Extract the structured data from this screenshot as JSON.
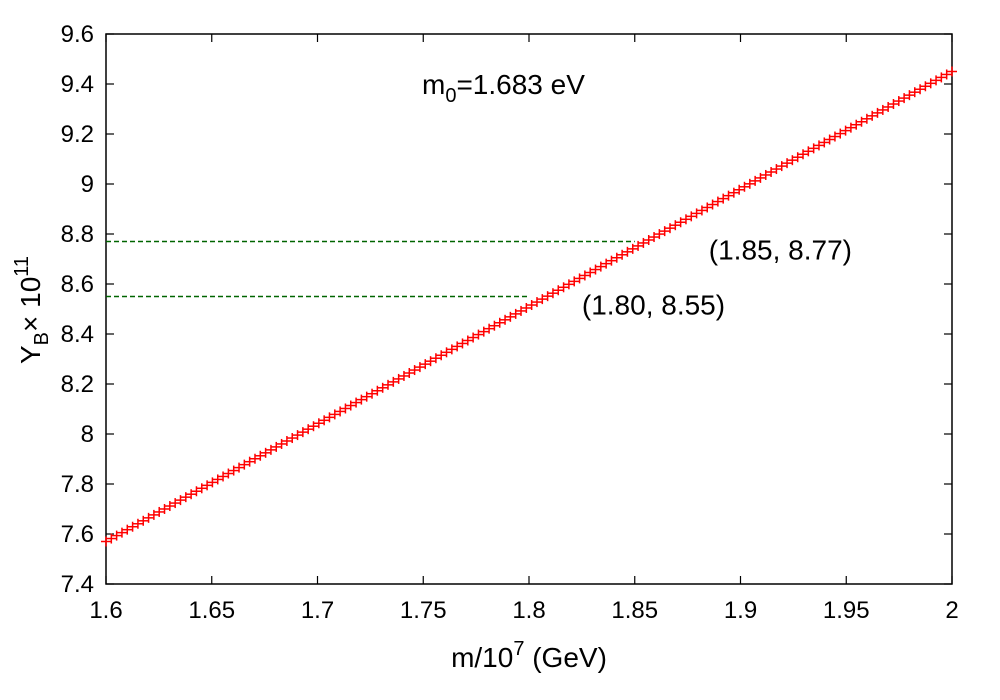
{
  "chart_data": {
    "type": "scatter",
    "title": "",
    "xlabel": {
      "prefix": "m/10",
      "sup": "7",
      "suffix": " (GeV)"
    },
    "ylabel": {
      "base": "Y",
      "sub": "B",
      "mid": "× 10",
      "sup": "11"
    },
    "xlim": [
      1.6,
      2.0
    ],
    "ylim": [
      7.4,
      9.6
    ],
    "xticks": [
      1.6,
      1.65,
      1.7,
      1.75,
      1.8,
      1.85,
      1.9,
      1.95,
      2.0
    ],
    "xtick_labels": [
      "1.6",
      "1.65",
      "1.7",
      "1.75",
      "1.8",
      "1.85",
      "1.9",
      "1.95",
      "2"
    ],
    "yticks": [
      7.4,
      7.6,
      7.8,
      8.0,
      8.2,
      8.4,
      8.6,
      8.8,
      9.0,
      9.2,
      9.4,
      9.6
    ],
    "ytick_labels": [
      "7.4",
      "7.6",
      "7.8",
      "8",
      "8.2",
      "8.4",
      "8.6",
      "8.8",
      "9",
      "9.2",
      "9.4",
      "9.6"
    ],
    "grid": false,
    "series": [
      {
        "color": "#ff0000",
        "marker": "plus",
        "x_start": 1.6,
        "x_end": 2.0,
        "y_start": 7.57,
        "y_end": 9.45,
        "points": 160
      }
    ],
    "reference_lines": [
      {
        "y": 8.77,
        "x_end": 1.85,
        "color": "#006400",
        "style": "dashed"
      },
      {
        "y": 8.55,
        "x_end": 1.8,
        "color": "#006400",
        "style": "dashed"
      }
    ],
    "annotations": [
      {
        "text": "(1.85, 8.77)",
        "x": 1.885,
        "y": 8.77
      },
      {
        "text": "(1.80, 8.55)",
        "x": 1.825,
        "y": 8.55
      }
    ],
    "inset_label": {
      "base": "m",
      "sub": "0",
      "rest": "=1.683 eV"
    }
  }
}
